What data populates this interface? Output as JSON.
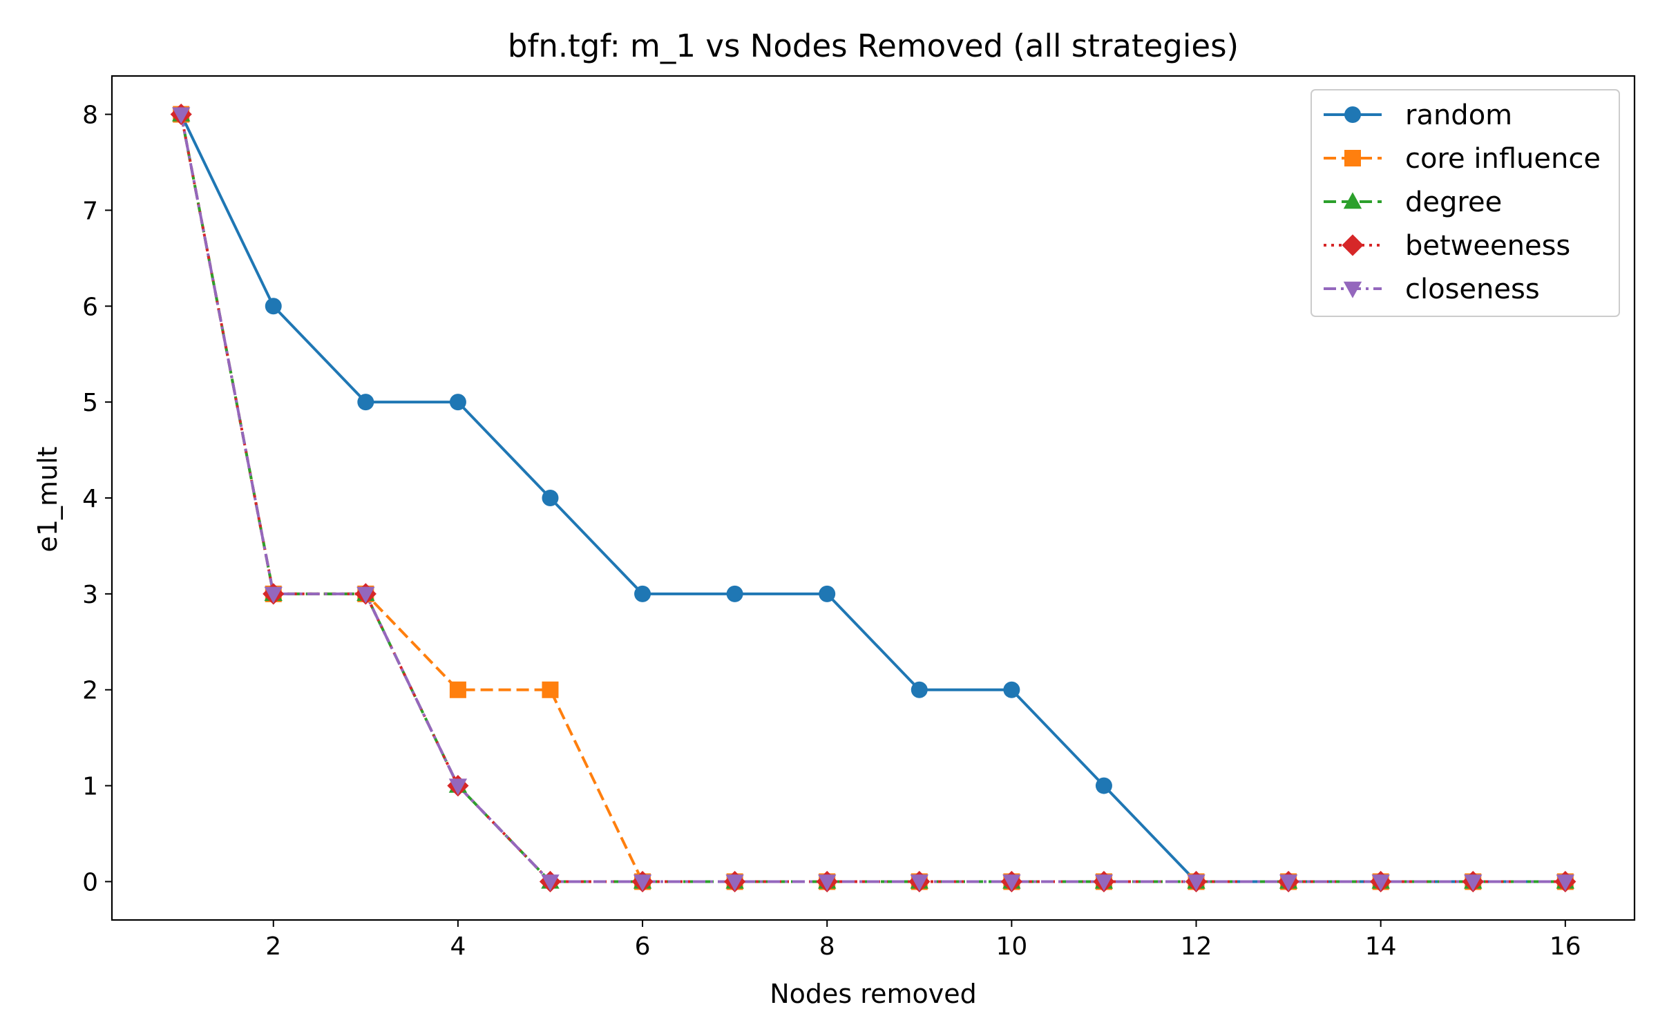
{
  "chart_data": {
    "type": "line",
    "title": "bfn.tgf: m_1 vs Nodes Removed (all strategies)",
    "xlabel": "Nodes removed",
    "ylabel": "e1_mult",
    "xlim": [
      0.25,
      16.75
    ],
    "ylim": [
      -0.4,
      8.4
    ],
    "xticks": [
      2,
      4,
      6,
      8,
      10,
      12,
      14,
      16
    ],
    "yticks": [
      0,
      1,
      2,
      3,
      4,
      5,
      6,
      7,
      8
    ],
    "grid": false,
    "legend_position": "top-right",
    "x": [
      1,
      2,
      3,
      4,
      5,
      6,
      7,
      8,
      9,
      10,
      11,
      12,
      13,
      14,
      15,
      16
    ],
    "series": [
      {
        "name": "random",
        "color": "#1f77b4",
        "marker": "circle",
        "linestyle": "solid",
        "values": [
          8,
          6,
          5,
          5,
          4,
          3,
          3,
          3,
          2,
          2,
          1,
          0,
          0,
          0,
          0,
          0
        ]
      },
      {
        "name": "core influence",
        "color": "#ff7f0e",
        "marker": "square",
        "linestyle": "dashed",
        "values": [
          8,
          3,
          3,
          2,
          2,
          0,
          0,
          0,
          0,
          0,
          0,
          0,
          0,
          0,
          0,
          0
        ]
      },
      {
        "name": "degree",
        "color": "#2ca02c",
        "marker": "triangle-up",
        "linestyle": "dashed",
        "values": [
          8,
          3,
          3,
          1,
          0,
          0,
          0,
          0,
          0,
          0,
          0,
          0,
          0,
          0,
          0,
          0
        ]
      },
      {
        "name": "betweeness",
        "color": "#d62728",
        "marker": "diamond",
        "linestyle": "dotted",
        "values": [
          8,
          3,
          3,
          1,
          0,
          0,
          0,
          0,
          0,
          0,
          0,
          0,
          0,
          0,
          0,
          0
        ]
      },
      {
        "name": "closeness",
        "color": "#9467bd",
        "marker": "triangle-down",
        "linestyle": "dashdot",
        "values": [
          8,
          3,
          3,
          1,
          0,
          0,
          0,
          0,
          0,
          0,
          0,
          0,
          0,
          0,
          0,
          0
        ]
      }
    ]
  }
}
